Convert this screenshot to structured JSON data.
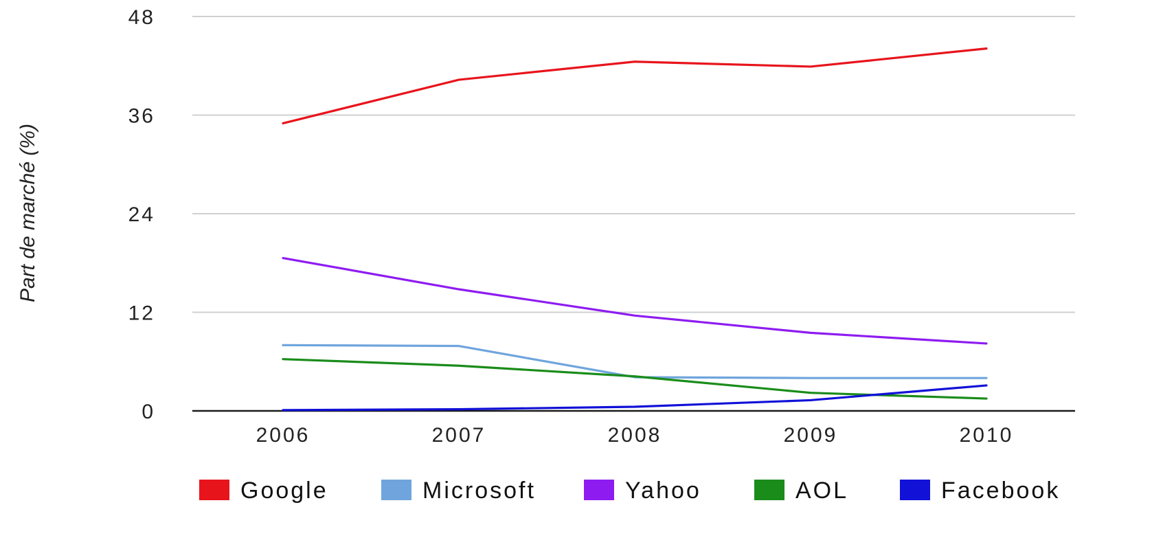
{
  "chart_data": {
    "type": "line",
    "title": "",
    "xlabel": "",
    "ylabel": "Part de marché (%)",
    "x": [
      "2006",
      "2007",
      "2008",
      "2009",
      "2010"
    ],
    "ylim": [
      0,
      48
    ],
    "yticks": [
      0,
      12,
      24,
      36,
      48
    ],
    "grid": true,
    "legend_position": "bottom",
    "series": [
      {
        "name": "Google",
        "color": "#e8141c",
        "values": [
          35.0,
          40.3,
          42.5,
          41.9,
          44.1
        ]
      },
      {
        "name": "Microsoft",
        "color": "#6fa5dc",
        "values": [
          8.0,
          7.9,
          4.1,
          4.0,
          4.0
        ]
      },
      {
        "name": "Yahoo",
        "color": "#8e1cf0",
        "values": [
          18.6,
          14.8,
          11.6,
          9.5,
          8.2
        ]
      },
      {
        "name": "AOL",
        "color": "#1a8c1a",
        "values": [
          6.3,
          5.5,
          4.2,
          2.2,
          1.5
        ]
      },
      {
        "name": "Facebook",
        "color": "#1111d8",
        "values": [
          0.1,
          0.2,
          0.5,
          1.3,
          3.1
        ]
      }
    ]
  }
}
